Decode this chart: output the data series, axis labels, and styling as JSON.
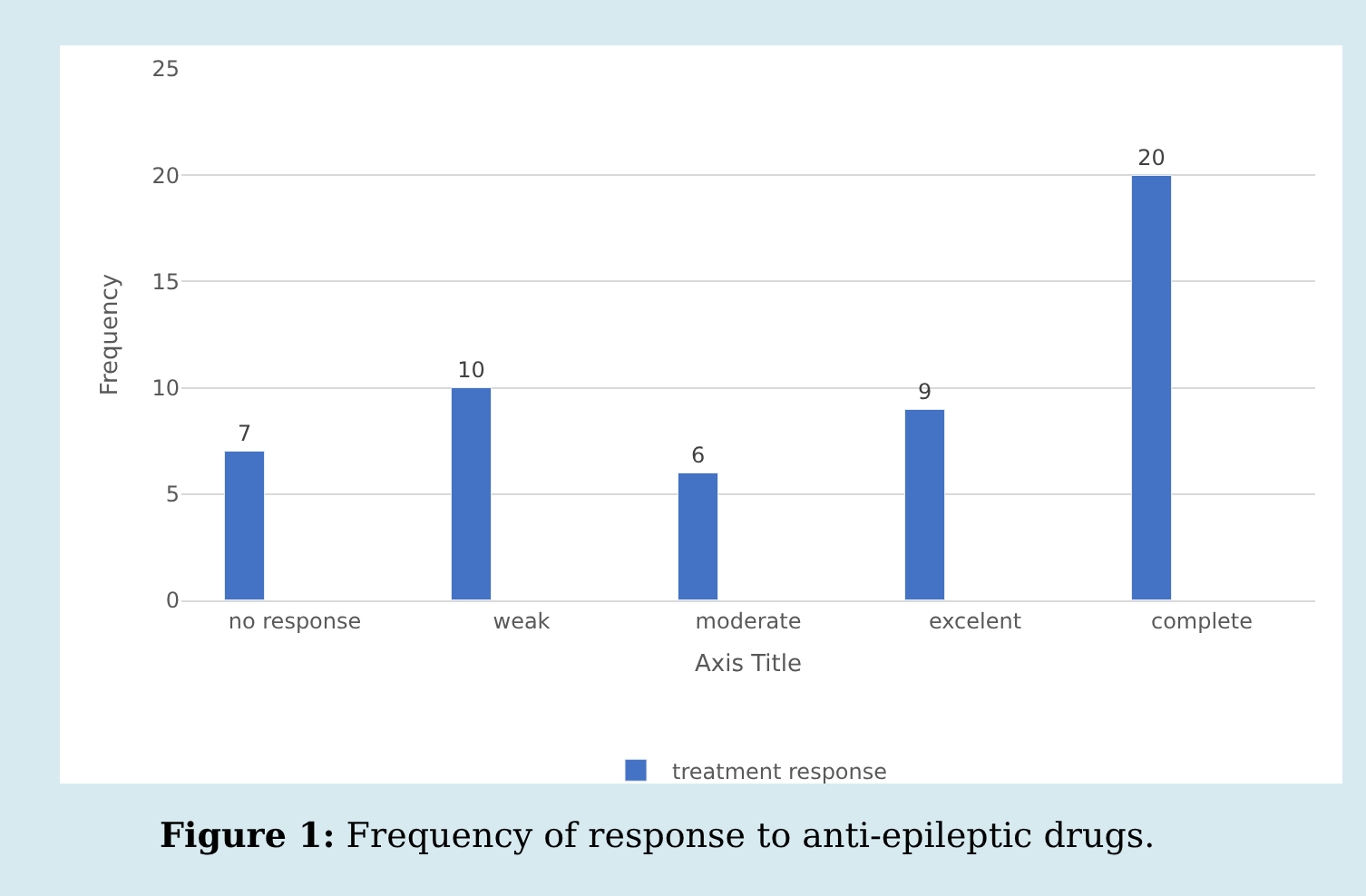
{
  "chart_data": {
    "type": "bar",
    "categories": [
      "no response",
      "weak",
      "moderate",
      "excelent",
      "complete"
    ],
    "series": [
      {
        "name": "treatment response",
        "color": "#4472c4",
        "values": [
          7,
          10,
          6,
          9,
          20
        ]
      }
    ],
    "ylim": [
      0,
      25
    ],
    "yticks": [
      0,
      5,
      10,
      15,
      20,
      25
    ],
    "ylabel": "Frequency",
    "xlabel": "Axis Title",
    "grid": "y",
    "legend": "bottom",
    "data_labels": true,
    "annotations": [
      "Figure 1: Frequency of response to anti-epileptic drugs."
    ]
  }
}
